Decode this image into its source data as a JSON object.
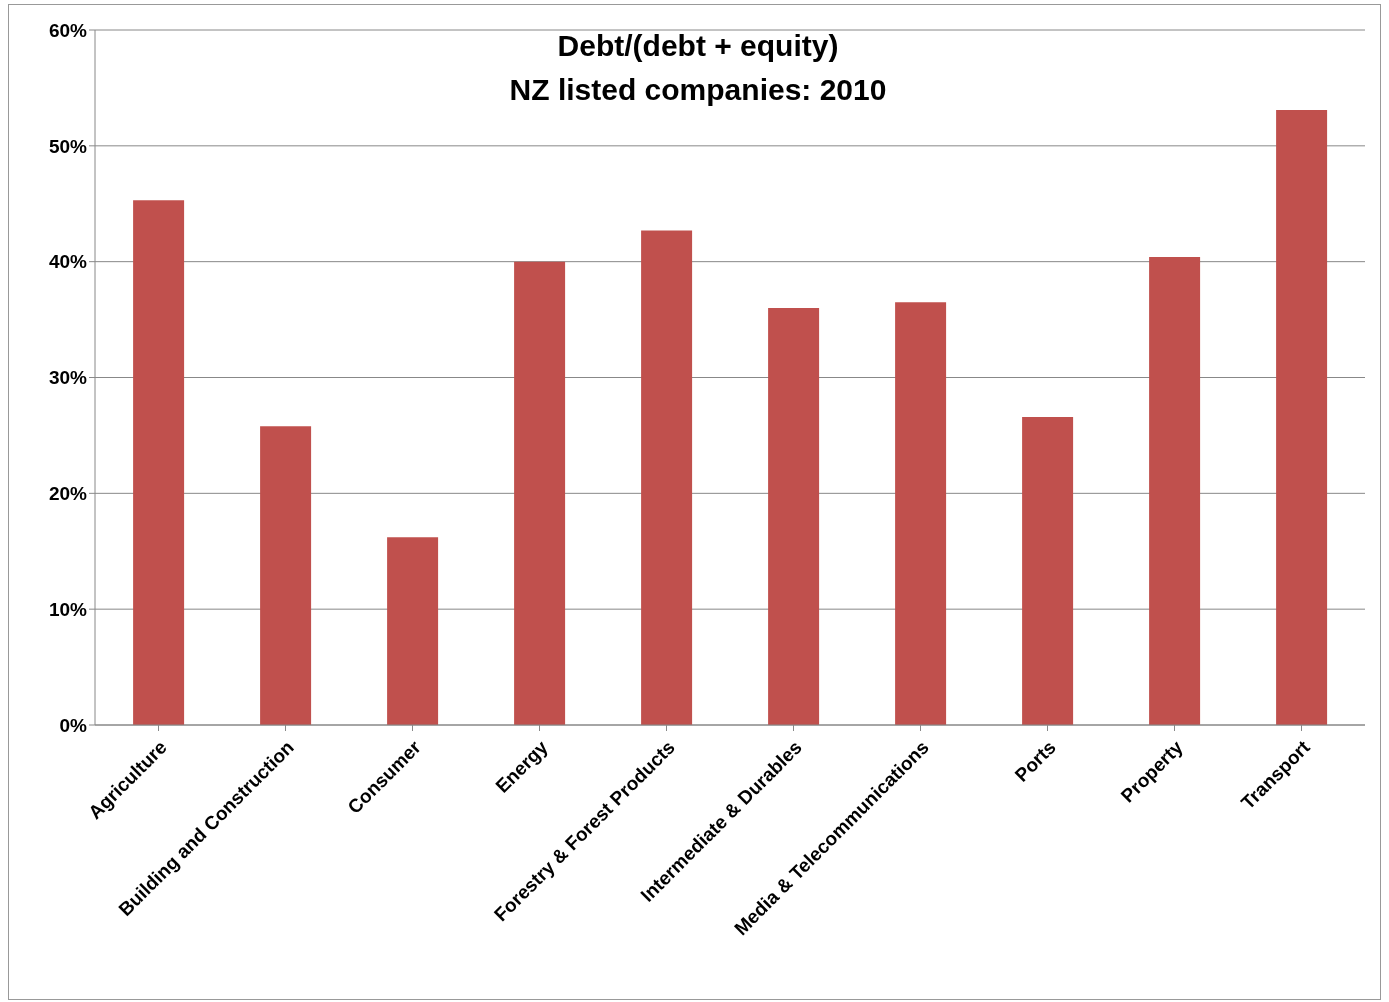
{
  "chart_data": {
    "type": "bar",
    "title": "Debt/(debt + equity)\nNZ listed companies: 2010",
    "categories": [
      "Agriculture",
      "Building and Construction",
      "Consumer",
      "Energy",
      "Forestry & Forest Products",
      "Intermediate & Durables",
      "Media & Telecommunications",
      "Ports",
      "Property",
      "Transport"
    ],
    "values": [
      45.3,
      25.8,
      16.2,
      40.0,
      42.7,
      36.0,
      36.5,
      26.6,
      40.4,
      53.1
    ],
    "color": "#c0504d",
    "ylim": [
      0,
      60
    ],
    "yticks": [
      {
        "value": 0,
        "label": "0%"
      },
      {
        "value": 10,
        "label": "10%"
      },
      {
        "value": 20,
        "label": "20%"
      },
      {
        "value": 30,
        "label": "30%"
      },
      {
        "value": 40,
        "label": "40%"
      },
      {
        "value": 50,
        "label": "50%"
      },
      {
        "value": 60,
        "label": "60%"
      }
    ],
    "grid": "y"
  }
}
